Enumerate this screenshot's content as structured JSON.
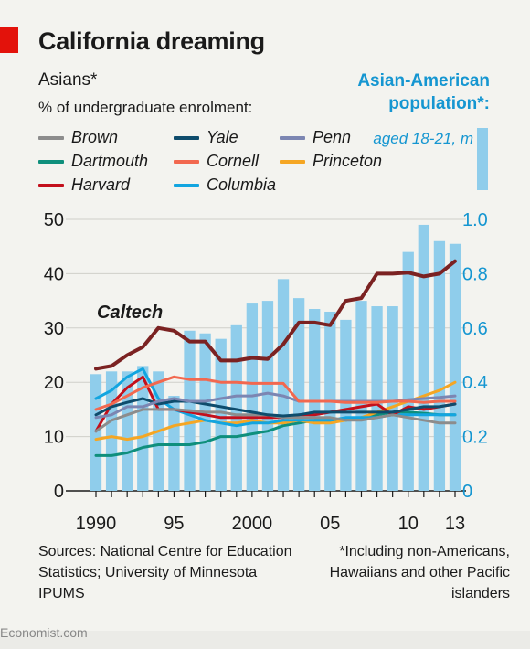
{
  "header": {
    "title": "California dreaming",
    "subtitle": "Asians*",
    "subtitle2": "% of undergraduate enrolment:",
    "right_title": "Asian-American population*:",
    "right_sub": "aged 18-21, m"
  },
  "legend": [
    {
      "name": "Brown",
      "color": "#8c8c8c"
    },
    {
      "name": "Yale",
      "color": "#0e4c6c"
    },
    {
      "name": "Penn",
      "color": "#7c86b2"
    },
    {
      "name": "Dartmouth",
      "color": "#0f8f7c"
    },
    {
      "name": "Cornell",
      "color": "#f2684f"
    },
    {
      "name": "Princeton",
      "color": "#f5a623"
    },
    {
      "name": "Harvard",
      "color": "#c3101c"
    },
    {
      "name": "Columbia",
      "color": "#12a5e0"
    }
  ],
  "annotation": "Caltech",
  "footer": {
    "sources": "Sources: National Centre for Education Statistics; University of Minnesota IPUMS",
    "note": "*Including non-Americans, Hawaiians and other Pacific islanders",
    "brand": "Economist.com"
  },
  "chart_data": {
    "type": "line",
    "x": [
      1990,
      1991,
      1992,
      1993,
      1994,
      1995,
      1996,
      1997,
      1998,
      1999,
      2000,
      2001,
      2002,
      2003,
      2004,
      2005,
      2006,
      2007,
      2008,
      2009,
      2010,
      2011,
      2012,
      2013
    ],
    "x_ticks": [
      1990,
      1995,
      2000,
      2005,
      2010,
      2013
    ],
    "x_tick_labels": [
      "1990",
      "95",
      "2000",
      "05",
      "10",
      "13"
    ],
    "ylim_left": [
      0,
      50
    ],
    "yticks_left": [
      0,
      10,
      20,
      30,
      40,
      50
    ],
    "ylim_right": [
      0,
      1.0
    ],
    "yticks_right": [
      "0",
      "0.2",
      "0.4",
      "0.6",
      "0.8",
      "1.0"
    ],
    "grid": true,
    "bars": {
      "name": "Asian-American population",
      "axis": "right",
      "color": "#8fcdeb",
      "values": [
        0.43,
        0.44,
        0.44,
        0.46,
        0.44,
        0.35,
        0.59,
        0.58,
        0.56,
        0.61,
        0.69,
        0.7,
        0.78,
        0.71,
        0.67,
        0.66,
        0.63,
        0.7,
        0.68,
        0.68,
        0.88,
        0.98,
        0.92,
        0.91
      ]
    },
    "series": [
      {
        "name": "Caltech",
        "color": "#7b2222",
        "width": 4,
        "values": [
          22.5,
          23,
          25,
          26.5,
          30,
          29.5,
          27.5,
          27.5,
          24,
          24,
          24.5,
          24.3,
          27,
          31,
          31,
          30.5,
          35,
          35.5,
          40,
          40,
          40.2,
          39.5,
          40,
          42.3
        ]
      },
      {
        "name": "Cornell",
        "color": "#f2684f",
        "width": 3,
        "values": [
          15,
          16,
          17.5,
          19,
          20,
          21,
          20.5,
          20.5,
          20,
          20,
          19.8,
          19.8,
          19.8,
          16.5,
          16.5,
          16.5,
          16.3,
          16.3,
          16.3,
          16.5,
          16.5,
          16.3,
          16.5,
          16.5
        ]
      },
      {
        "name": "Penn",
        "color": "#7c86b2",
        "width": 3,
        "values": [
          13.5,
          14,
          15.5,
          15.5,
          16.5,
          17,
          16.5,
          16.5,
          17,
          17.5,
          17.5,
          18,
          17.5,
          16.5,
          16.5,
          16.5,
          16.5,
          16.5,
          16.5,
          16.5,
          16.8,
          17,
          17.2,
          17.5
        ]
      },
      {
        "name": "Yale",
        "color": "#0e4c6c",
        "width": 3,
        "values": [
          14,
          15.5,
          16.3,
          17,
          16,
          16.5,
          16.5,
          16,
          15.5,
          15,
          14.5,
          14,
          13.8,
          14,
          14.5,
          14.5,
          14.5,
          14.5,
          14.5,
          14.5,
          15,
          15.5,
          15.5,
          16
        ]
      },
      {
        "name": "Brown",
        "color": "#8c8c8c",
        "width": 3,
        "values": [
          11,
          13,
          14,
          15,
          15,
          15,
          14.8,
          14.5,
          14.5,
          14,
          14,
          14,
          13.5,
          13.5,
          13.5,
          13.5,
          13,
          13,
          13.5,
          14,
          13.5,
          13,
          12.5,
          12.5
        ]
      },
      {
        "name": "Harvard",
        "color": "#c3101c",
        "width": 3,
        "values": [
          11,
          16,
          19,
          21,
          15,
          15,
          14.5,
          14,
          13.5,
          13.5,
          13.5,
          13.5,
          13.5,
          14,
          14,
          14.5,
          15,
          15.5,
          16,
          14,
          15.5,
          15,
          15.5,
          16
        ]
      },
      {
        "name": "Columbia",
        "color": "#12a5e0",
        "width": 3,
        "values": [
          17,
          18.5,
          21,
          22.5,
          17,
          15,
          14,
          13,
          12.5,
          12,
          12.5,
          12.5,
          13,
          13,
          13,
          13,
          13.5,
          13.5,
          13.5,
          14,
          14,
          14,
          14,
          14
        ]
      },
      {
        "name": "Princeton",
        "color": "#f5a623",
        "width": 3,
        "values": [
          9.5,
          10,
          9.5,
          10,
          11,
          12,
          12.5,
          13,
          12.5,
          12.5,
          13,
          12.5,
          12.5,
          13,
          12.5,
          12.5,
          13,
          13.5,
          14.5,
          15.5,
          16.5,
          17.5,
          18.5,
          20
        ]
      },
      {
        "name": "Dartmouth",
        "color": "#0f8f7c",
        "width": 3,
        "values": [
          6.5,
          6.5,
          7,
          8,
          8.5,
          8.5,
          8.5,
          9,
          10,
          10,
          10.5,
          11,
          12,
          12.5,
          13,
          13,
          13,
          13.5,
          14,
          14.5,
          14.5,
          14.3,
          14,
          14
        ]
      }
    ]
  }
}
